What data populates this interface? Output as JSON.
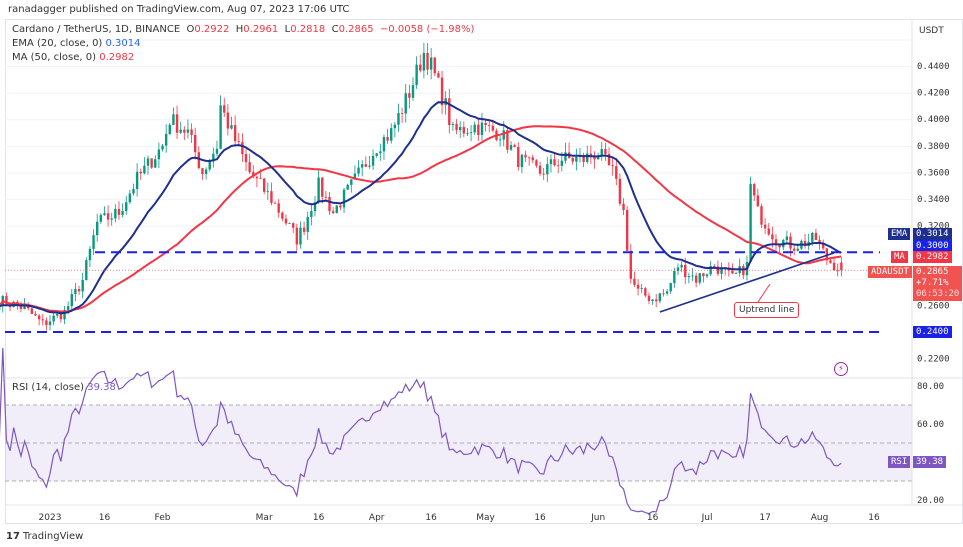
{
  "publisher": "ranadagger published on TradingView.com, Aug 07, 2023 17:06 UTC",
  "legend": {
    "symbol": "Cardano / TetherUS, 1D, BINANCE",
    "o": "0.2922",
    "h": "0.2961",
    "l": "0.2818",
    "c": "0.2865",
    "change": "−0.0058 (−1.98%)",
    "ema": "EMA (20, close, 0)",
    "ema_val": "0.3014",
    "ma": "MA (50, close, 0)",
    "ma_val": "0.2982",
    "rsi": "RSI (14, close)",
    "rsi_val": "39.38"
  },
  "axis": {
    "currency": "USDT",
    "price_ticks": [
      "0.4400",
      "0.4200",
      "0.4000",
      "0.3800",
      "0.3600",
      "0.3400",
      "0.3200",
      "0.2600",
      "0.2200"
    ],
    "rsi_ticks": [
      "80.00",
      "60.00",
      "20.00"
    ],
    "time_ticks": [
      "2023",
      "16",
      "Feb",
      "Mar",
      "16",
      "Apr",
      "16",
      "May",
      "16",
      "Jun",
      "16",
      "Jul",
      "17",
      "Aug",
      "16"
    ]
  },
  "tags": {
    "ema_label": "EMA",
    "ema_value": "0.3014",
    "level_300": "0.3000",
    "ma_label": "MA",
    "ma_value": "0.2982",
    "sym_label": "ADAUSDT",
    "price": "0.2865",
    "pct": "+7.71%",
    "countdown": "06:53:20",
    "level_240": "0.2400",
    "rsi_label": "RSI",
    "rsi_value": "39.38"
  },
  "annotation": "Uptrend line",
  "brand": "TradingView",
  "colors": {
    "up": "#089981",
    "down": "#f23645",
    "ema": "#1e2f8f",
    "ma": "#f23645",
    "rsi": "#7e57c2",
    "level": "#1a22e6"
  },
  "chart_data": {
    "type": "candlestick",
    "symbol": "ADAUSDT",
    "close_path": [
      [
        "2022-12-18",
        0.264
      ],
      [
        "2022-12-25",
        0.258
      ],
      [
        "2022-12-30",
        0.246
      ],
      [
        "2023-01-05",
        0.255
      ],
      [
        "2023-01-10",
        0.279
      ],
      [
        "2023-01-14",
        0.322
      ],
      [
        "2023-01-20",
        0.33
      ],
      [
        "2023-01-25",
        0.355
      ],
      [
        "2023-02-01",
        0.38
      ],
      [
        "2023-02-03",
        0.4
      ],
      [
        "2023-02-08",
        0.39
      ],
      [
        "2023-02-12",
        0.36
      ],
      [
        "2023-02-16",
        0.38
      ],
      [
        "2023-02-17",
        0.41
      ],
      [
        "2023-02-20",
        0.39
      ],
      [
        "2023-02-25",
        0.36
      ],
      [
        "2023-03-03",
        0.34
      ],
      [
        "2023-03-10",
        0.31
      ],
      [
        "2023-03-12",
        0.32
      ],
      [
        "2023-03-16",
        0.35
      ],
      [
        "2023-03-20",
        0.33
      ],
      [
        "2023-03-25",
        0.35
      ],
      [
        "2023-04-01",
        0.38
      ],
      [
        "2023-04-05",
        0.39
      ],
      [
        "2023-04-10",
        0.42
      ],
      [
        "2023-04-14",
        0.45
      ],
      [
        "2023-04-16",
        0.44
      ],
      [
        "2023-04-20",
        0.41
      ],
      [
        "2023-04-22",
        0.39
      ],
      [
        "2023-04-28",
        0.395
      ],
      [
        "2023-05-05",
        0.39
      ],
      [
        "2023-05-10",
        0.37
      ],
      [
        "2023-05-16",
        0.36
      ],
      [
        "2023-05-22",
        0.37
      ],
      [
        "2023-05-28",
        0.37
      ],
      [
        "2023-06-01",
        0.375
      ],
      [
        "2023-06-05",
        0.36
      ],
      [
        "2023-06-08",
        0.33
      ],
      [
        "2023-06-10",
        0.28
      ],
      [
        "2023-06-12",
        0.27
      ],
      [
        "2023-06-16",
        0.265
      ],
      [
        "2023-06-20",
        0.27
      ],
      [
        "2023-06-23",
        0.29
      ],
      [
        "2023-06-28",
        0.28
      ],
      [
        "2023-07-03",
        0.29
      ],
      [
        "2023-07-08",
        0.28
      ],
      [
        "2023-07-12",
        0.29
      ],
      [
        "2023-07-13",
        0.35
      ],
      [
        "2023-07-15",
        0.33
      ],
      [
        "2023-07-20",
        0.31
      ],
      [
        "2023-07-25",
        0.305
      ],
      [
        "2023-07-31",
        0.31
      ],
      [
        "2023-08-03",
        0.295
      ],
      [
        "2023-08-07",
        0.2865
      ]
    ],
    "levels": [
      0.3,
      0.24
    ],
    "trendline": [
      [
        "2023-06-18",
        0.255
      ],
      [
        "2023-08-05",
        0.2995
      ]
    ],
    "price_range": [
      0.215,
      0.455
    ],
    "rsi_range": [
      15,
      85
    ],
    "rsi_bands": [
      30,
      70
    ]
  }
}
